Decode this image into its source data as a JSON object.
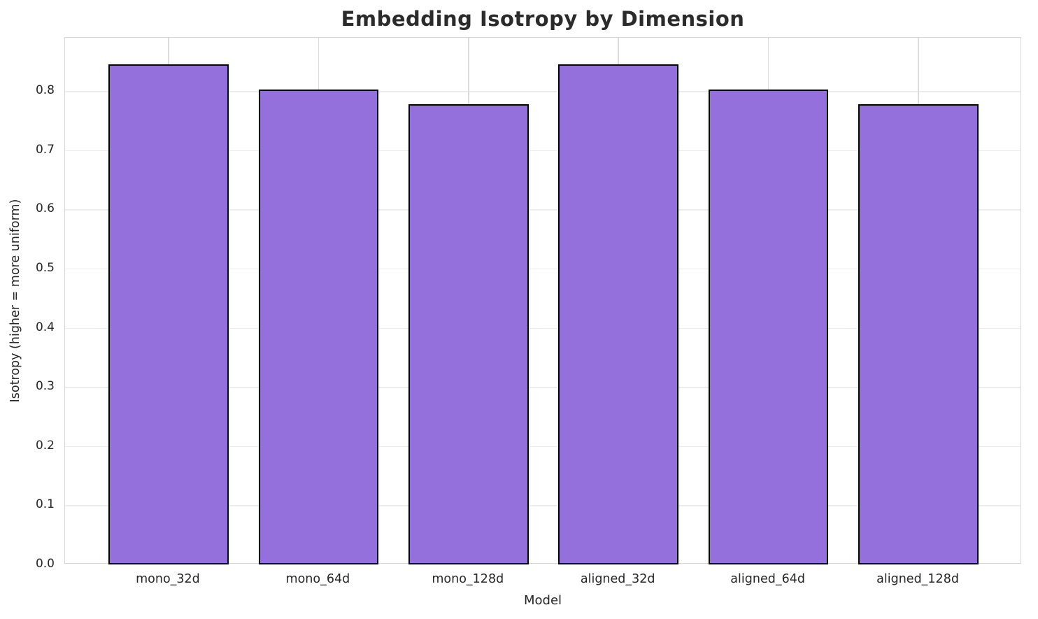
{
  "chart_data": {
    "type": "bar",
    "title": "Embedding Isotropy by Dimension",
    "xlabel": "Model",
    "ylabel": "Isotropy (higher = more uniform)",
    "categories": [
      "mono_32d",
      "mono_64d",
      "mono_128d",
      "aligned_32d",
      "aligned_64d",
      "aligned_128d"
    ],
    "values": [
      0.845,
      0.803,
      0.778,
      0.845,
      0.803,
      0.778
    ],
    "ylim": [
      0.0,
      0.89
    ],
    "yticks": [
      0.0,
      0.1,
      0.2,
      0.3,
      0.4,
      0.5,
      0.6,
      0.7,
      0.8
    ],
    "ytick_labels": [
      "0.0",
      "0.1",
      "0.2",
      "0.3",
      "0.4",
      "0.5",
      "0.6",
      "0.7",
      "0.8"
    ],
    "grid": true,
    "legend_position": "none",
    "bar_color": "#9370DB",
    "bar_edge_color": "#000000",
    "background_color": "#FFFFFF",
    "grid_color_horizontal": "#ECECEC",
    "grid_color_vertical": "#DCDCDC",
    "spine_color": "#D5D5D5",
    "text_color": "#262626"
  }
}
